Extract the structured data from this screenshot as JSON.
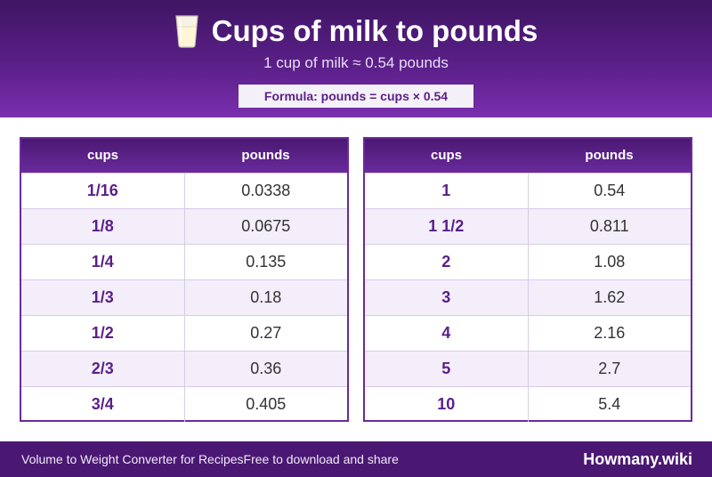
{
  "header": {
    "title": "Cups of milk to pounds",
    "subtitle": "1 cup of milk ≈ 0.54 pounds",
    "formula": "Formula: pounds = cups × 0.54",
    "icon": "milk-glass-icon"
  },
  "tables": [
    {
      "headers": {
        "cups": "cups",
        "pounds": "pounds"
      },
      "rows": [
        {
          "cups": "1/16",
          "pounds": "0.0338"
        },
        {
          "cups": "1/8",
          "pounds": "0.0675"
        },
        {
          "cups": "1/4",
          "pounds": "0.135"
        },
        {
          "cups": "1/3",
          "pounds": "0.18"
        },
        {
          "cups": "1/2",
          "pounds": "0.27"
        },
        {
          "cups": "2/3",
          "pounds": "0.36"
        },
        {
          "cups": "3/4",
          "pounds": "0.405"
        }
      ]
    },
    {
      "headers": {
        "cups": "cups",
        "pounds": "pounds"
      },
      "rows": [
        {
          "cups": "1",
          "pounds": "0.54"
        },
        {
          "cups": "1 1/2",
          "pounds": "0.811"
        },
        {
          "cups": "2",
          "pounds": "1.08"
        },
        {
          "cups": "3",
          "pounds": "1.62"
        },
        {
          "cups": "4",
          "pounds": "2.16"
        },
        {
          "cups": "5",
          "pounds": "2.7"
        },
        {
          "cups": "10",
          "pounds": "5.4"
        }
      ]
    }
  ],
  "footer": {
    "left_text_1": "Volume to Weight Converter for Recipes",
    "left_text_2": "Free to download and share",
    "brand": "Howmany.wiki"
  },
  "colors": {
    "brand_purple": "#5a1f88",
    "header_dark": "#3f1563",
    "row_alt": "#f3eefa"
  }
}
